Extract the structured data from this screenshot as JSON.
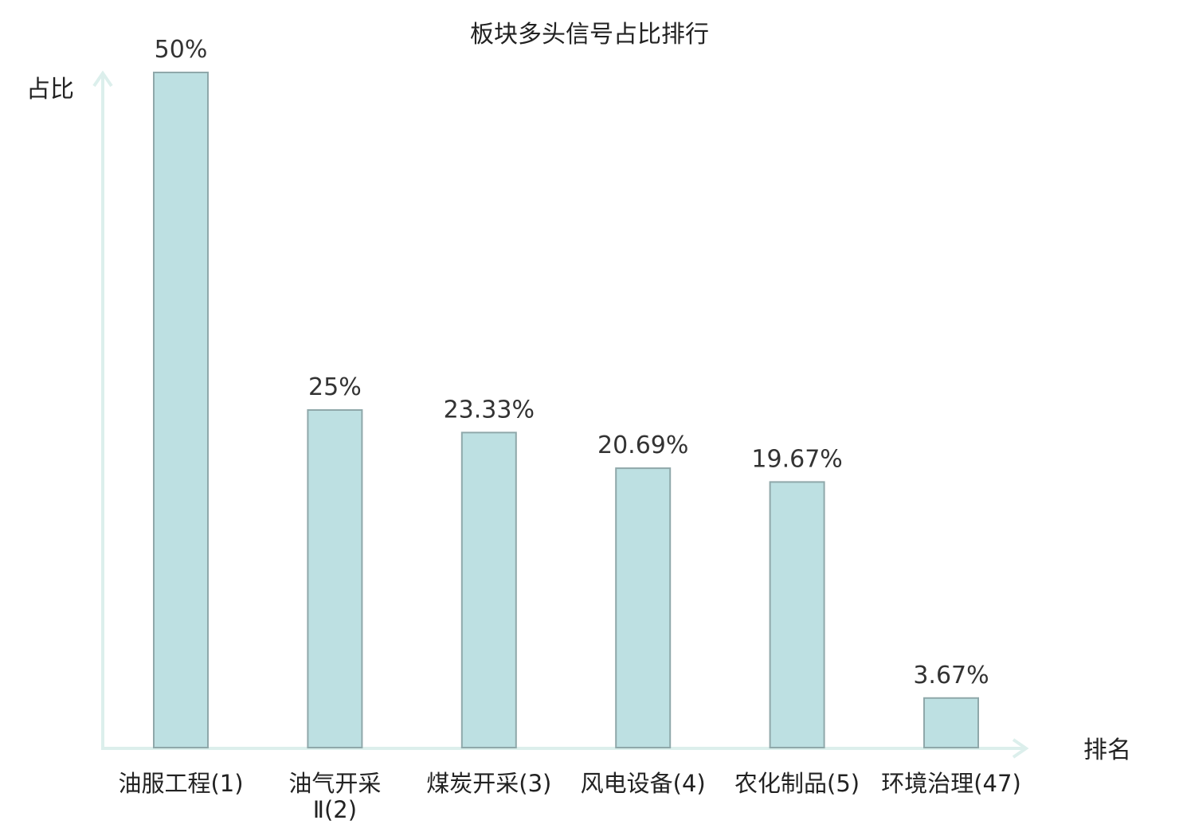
{
  "chart_data": {
    "type": "bar",
    "title": "板块多头信号占比排行",
    "ylabel": "占比",
    "xlabel": "排名",
    "categories": [
      [
        "油服工程(1)"
      ],
      [
        "油气开采",
        "Ⅱ(2)"
      ],
      [
        "煤炭开采(3)"
      ],
      [
        "风电设备(4)"
      ],
      [
        "农化制品(5)"
      ],
      [
        "环境治理(47)"
      ]
    ],
    "values": [
      50,
      25,
      23.33,
      20.69,
      19.67,
      3.67
    ],
    "value_labels": [
      "50%",
      "25%",
      "23.33%",
      "20.69%",
      "19.67%",
      "3.67%"
    ],
    "highlight_index": 5,
    "ylim": [
      0,
      50
    ],
    "grid": false,
    "legend": "none"
  },
  "colors": {
    "bar_fill": "#bde0e2",
    "bar_stroke": "#8fa8aa",
    "axis": "#dcefec",
    "highlight_text": "#e31b1b",
    "text": "#222222"
  }
}
